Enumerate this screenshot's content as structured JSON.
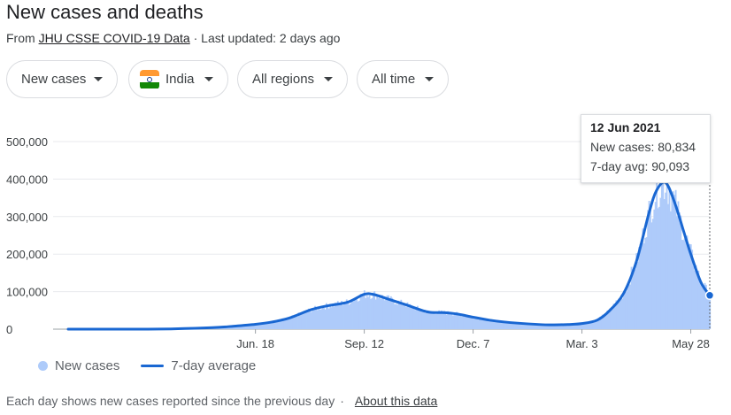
{
  "header": {
    "title": "New cases and deaths",
    "source_prefix": "From",
    "source_link": "JHU CSSE COVID-19 Data",
    "updated": "· Last updated: 2 days ago"
  },
  "filters": {
    "metric": "New cases",
    "country": "India",
    "region": "All regions",
    "time": "All time"
  },
  "tooltip": {
    "date": "12 Jun 2021",
    "new_cases": "New cases: 80,834",
    "avg": "7-day avg: 90,093"
  },
  "legend": {
    "bars": "New cases",
    "line": "7-day average"
  },
  "footer": {
    "note": "Each day shows new cases reported since the previous day",
    "separator": "·",
    "about": "About this data"
  },
  "colors": {
    "bar": "#aecbfa",
    "line": "#1967d2",
    "grid": "#e8eaed"
  },
  "chart_data": {
    "type": "area",
    "title": "",
    "xlabel": "",
    "ylabel": "",
    "ylim": [
      0,
      500000
    ],
    "yticks": [
      0,
      100000,
      200000,
      300000,
      400000,
      500000
    ],
    "ytick_labels": [
      "0",
      "100,000",
      "200,000",
      "300,000",
      "400,000",
      "500,000"
    ],
    "xtick_labels": [
      {
        "date": "2020-06-18",
        "label": "Jun. 18"
      },
      {
        "date": "2020-09-12",
        "label": "Sep. 12"
      },
      {
        "date": "2020-12-07",
        "label": "Dec. 7"
      },
      {
        "date": "2021-03-03",
        "label": "Mar. 3"
      },
      {
        "date": "2021-05-28",
        "label": "May 28"
      }
    ],
    "xlim": [
      "2020-01-22",
      "2021-06-12"
    ],
    "series": [
      {
        "name": "7-day average",
        "points": [
          [
            "2020-01-22",
            0
          ],
          [
            "2020-03-15",
            100
          ],
          [
            "2020-04-15",
            1000
          ],
          [
            "2020-05-15",
            4000
          ],
          [
            "2020-06-01",
            8000
          ],
          [
            "2020-06-18",
            13000
          ],
          [
            "2020-07-01",
            19000
          ],
          [
            "2020-07-15",
            30000
          ],
          [
            "2020-08-01",
            52000
          ],
          [
            "2020-08-15",
            63000
          ],
          [
            "2020-08-30",
            72000
          ],
          [
            "2020-09-12",
            93000
          ],
          [
            "2020-09-20",
            92000
          ],
          [
            "2020-10-01",
            80000
          ],
          [
            "2020-10-15",
            65000
          ],
          [
            "2020-11-01",
            46000
          ],
          [
            "2020-11-15",
            44000
          ],
          [
            "2020-11-25",
            40000
          ],
          [
            "2020-12-07",
            32000
          ],
          [
            "2020-12-20",
            24000
          ],
          [
            "2021-01-01",
            19000
          ],
          [
            "2021-01-20",
            14000
          ],
          [
            "2021-02-05",
            11500
          ],
          [
            "2021-02-20",
            12500
          ],
          [
            "2021-03-03",
            15000
          ],
          [
            "2021-03-15",
            24000
          ],
          [
            "2021-03-25",
            50000
          ],
          [
            "2021-04-05",
            96000
          ],
          [
            "2021-04-15",
            180000
          ],
          [
            "2021-04-25",
            310000
          ],
          [
            "2021-05-01",
            370000
          ],
          [
            "2021-05-08",
            391000
          ],
          [
            "2021-05-15",
            340000
          ],
          [
            "2021-05-22",
            265000
          ],
          [
            "2021-05-28",
            200000
          ],
          [
            "2021-06-05",
            125000
          ],
          [
            "2021-06-12",
            90093
          ]
        ]
      }
    ],
    "highlight": {
      "date": "2021-06-12",
      "new_cases": 80834,
      "avg": 90093
    }
  }
}
